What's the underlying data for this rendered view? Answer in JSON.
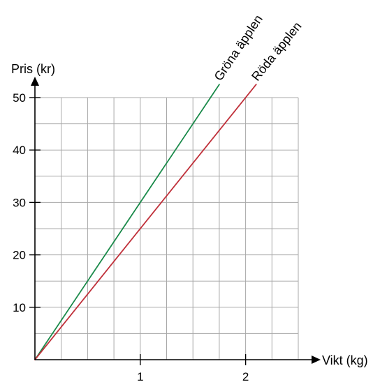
{
  "chart_data": {
    "type": "line",
    "title": "",
    "xlabel": "Vikt (kg)",
    "ylabel": "Pris (kr)",
    "xlim": [
      0,
      2.5
    ],
    "ylim": [
      0,
      50
    ],
    "x_grid_step": 0.25,
    "y_grid_step": 5,
    "x_ticks": [
      1,
      2
    ],
    "x_tick_labels": [
      "1",
      "2"
    ],
    "y_ticks": [
      10,
      20,
      30,
      40,
      50
    ],
    "y_tick_labels": [
      "10",
      "20",
      "30",
      "40",
      "50"
    ],
    "grid": true,
    "series": [
      {
        "name": "Gröna äpplen",
        "x": [
          0,
          1.75
        ],
        "y": [
          0,
          52.5
        ],
        "color": "#1a8a4a"
      },
      {
        "name": "Röda äpplen",
        "x": [
          0,
          2.1
        ],
        "y": [
          0,
          52.5
        ],
        "color": "#c0303a"
      }
    ],
    "grid_color": "#a8a8a8",
    "axis_color": "#000000"
  }
}
